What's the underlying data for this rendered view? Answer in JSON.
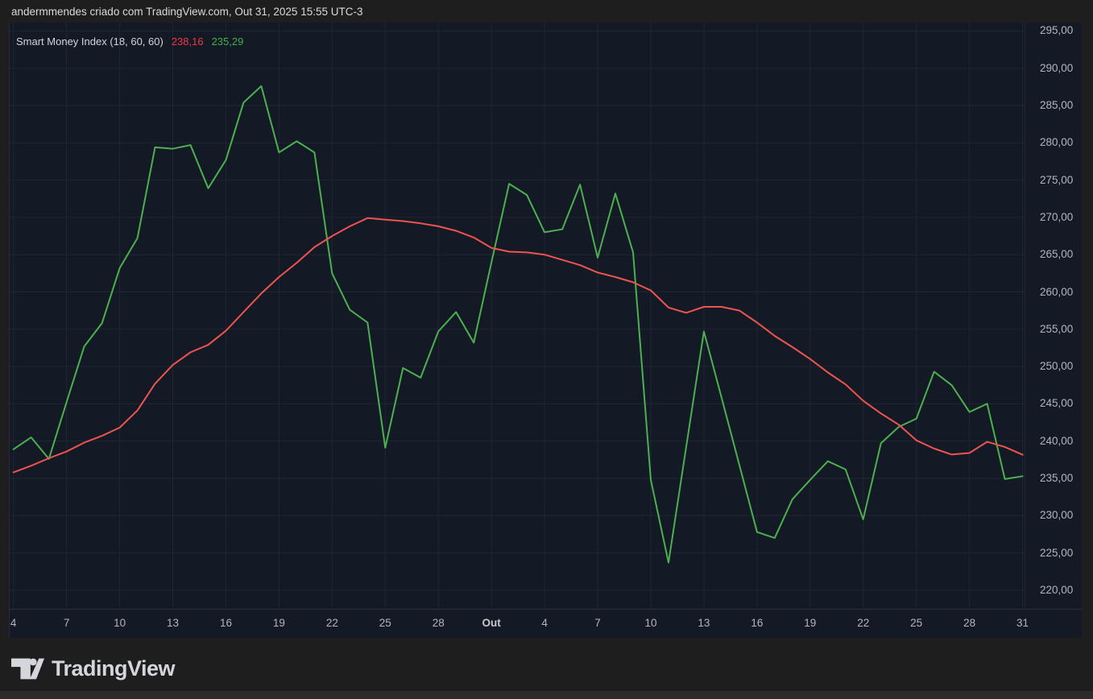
{
  "header": {
    "attribution": "andermmendes criado com TradingView.com, Out 31, 2025 15:55 UTC-3"
  },
  "legend": {
    "indicator_name": "Smart Money Index (18, 60, 60)",
    "value_red": "238,16",
    "value_green": "235,29"
  },
  "footer": {
    "brand": "TradingView",
    "logo_icon": "tradingview-17-mark"
  },
  "colors": {
    "outer_background": "#1e1e1e",
    "chart_background": "#141a25",
    "grid": "#1f2633",
    "pane_border": "#2a3040",
    "axis_text": "#b2b5be",
    "legend_text": "#d1d4dc",
    "smi_line": "#4caf50",
    "ma_line": "#ef5350",
    "legend_value_red": "#f23645",
    "legend_value_green": "#3fae49"
  },
  "chart_data": {
    "type": "line",
    "title": "Smart Money Index (18, 60, 60)",
    "grid": true,
    "legend_position": "top-left",
    "y_axis": {
      "min": 220,
      "max": 295,
      "step": 5,
      "tick_format": "comma-decimal",
      "side": "right"
    },
    "x_axis": {
      "note_visible_ticks_only": true,
      "ticks": [
        {
          "index": 0,
          "label": "4"
        },
        {
          "index": 3,
          "label": "7"
        },
        {
          "index": 6,
          "label": "10"
        },
        {
          "index": 9,
          "label": "13"
        },
        {
          "index": 12,
          "label": "16"
        },
        {
          "index": 15,
          "label": "19"
        },
        {
          "index": 18,
          "label": "22"
        },
        {
          "index": 21,
          "label": "25"
        },
        {
          "index": 24,
          "label": "28"
        },
        {
          "index": 27,
          "label": "Out",
          "bold": true
        },
        {
          "index": 30,
          "label": "4"
        },
        {
          "index": 33,
          "label": "7"
        },
        {
          "index": 36,
          "label": "10"
        },
        {
          "index": 39,
          "label": "13"
        },
        {
          "index": 42,
          "label": "16"
        },
        {
          "index": 45,
          "label": "19"
        },
        {
          "index": 48,
          "label": "22"
        },
        {
          "index": 51,
          "label": "25"
        },
        {
          "index": 54,
          "label": "28"
        },
        {
          "index": 57,
          "label": "31"
        }
      ]
    },
    "series": [
      {
        "name": "Smart Money Index",
        "css_name": "smi-line",
        "color": "#4caf50",
        "last_value_label": "235,29",
        "values": [
          238.9,
          240.5,
          237.6,
          245.2,
          252.7,
          255.8,
          263.2,
          267.2,
          279.4,
          279.2,
          279.7,
          273.9,
          277.7,
          285.4,
          287.6,
          278.7,
          280.2,
          278.7,
          262.5,
          257.6,
          255.9,
          239.1,
          249.8,
          248.5,
          254.7,
          257.3,
          253.2,
          264.0,
          274.5,
          273.0,
          268.0,
          268.4,
          274.4,
          264.6,
          273.2,
          265.3,
          234.8,
          223.7,
          239.2,
          254.7,
          245.8,
          236.8,
          227.8,
          227.0,
          232.2,
          234.8,
          237.3,
          236.2,
          229.5,
          239.7,
          241.9,
          243.0,
          249.3,
          247.5,
          243.9,
          245.0,
          234.9,
          235.29
        ]
      },
      {
        "name": "Smart Money Index MA",
        "css_name": "smi-ma-line",
        "color": "#ef5350",
        "last_value_label": "238,16",
        "values": [
          235.8,
          236.7,
          237.7,
          238.6,
          239.8,
          240.7,
          241.8,
          244.1,
          247.7,
          250.2,
          251.9,
          252.9,
          254.8,
          257.3,
          259.8,
          262.0,
          263.9,
          266.0,
          267.5,
          268.8,
          269.9,
          269.7,
          269.5,
          269.2,
          268.8,
          268.2,
          267.3,
          265.9,
          265.4,
          265.3,
          265.0,
          264.3,
          263.6,
          262.6,
          262.0,
          261.3,
          260.2,
          257.9,
          257.2,
          258.0,
          258.0,
          257.5,
          255.9,
          254.1,
          252.6,
          251.0,
          249.2,
          247.6,
          245.4,
          243.7,
          242.2,
          240.1,
          239.0,
          238.2,
          238.4,
          239.9,
          239.2,
          238.16
        ]
      }
    ]
  }
}
